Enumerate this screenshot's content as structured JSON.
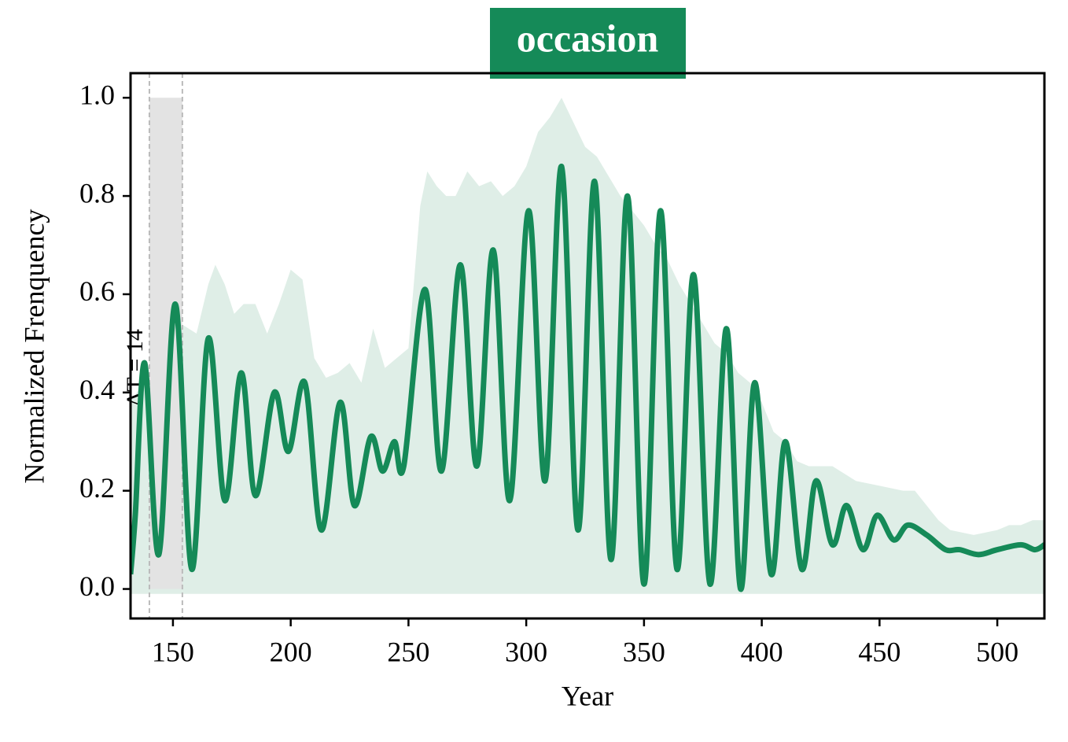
{
  "chart_data": {
    "type": "line",
    "title": "occasion",
    "x_label": "Year",
    "y_label": "Normalized Frenquency",
    "annotation": "ΔT = 14",
    "color": "#158a58",
    "xlim": [
      132,
      520
    ],
    "ylim": [
      -0.06,
      1.05
    ],
    "xticks": [
      150,
      200,
      250,
      300,
      350,
      400,
      450,
      500
    ],
    "yticks": [
      {
        "value": 0,
        "label": "0.0"
      },
      {
        "value": 0.2,
        "label": "0.2"
      },
      {
        "value": 0.4,
        "label": "0.4"
      },
      {
        "value": 0.6,
        "label": "0.6"
      },
      {
        "value": 0.8,
        "label": "0.8"
      },
      {
        "value": 1,
        "label": "1.0"
      }
    ],
    "span": {
      "start": 140,
      "end": 154,
      "ymin": 0,
      "ymax": 1,
      "color": "#e3e3e3"
    },
    "band": {
      "color": "#dfeee7",
      "lower": -0.01,
      "x": [
        132,
        140,
        150,
        160,
        165,
        168,
        172,
        176,
        180,
        185,
        190,
        195,
        200,
        205,
        210,
        215,
        220,
        225,
        230,
        235,
        240,
        245,
        250,
        255,
        258,
        262,
        266,
        270,
        275,
        280,
        285,
        290,
        295,
        300,
        305,
        310,
        315,
        320,
        325,
        330,
        335,
        340,
        345,
        350,
        355,
        360,
        365,
        370,
        375,
        380,
        385,
        390,
        395,
        400,
        405,
        410,
        415,
        420,
        430,
        440,
        450,
        460,
        465,
        470,
        475,
        480,
        490,
        500,
        505,
        510,
        515,
        520
      ],
      "upper": [
        0.38,
        0.44,
        0.55,
        0.52,
        0.62,
        0.66,
        0.62,
        0.56,
        0.58,
        0.58,
        0.52,
        0.58,
        0.65,
        0.63,
        0.47,
        0.43,
        0.44,
        0.46,
        0.42,
        0.53,
        0.45,
        0.47,
        0.49,
        0.78,
        0.85,
        0.82,
        0.8,
        0.8,
        0.85,
        0.82,
        0.83,
        0.8,
        0.82,
        0.86,
        0.93,
        0.96,
        1.0,
        0.95,
        0.9,
        0.88,
        0.84,
        0.8,
        0.77,
        0.74,
        0.7,
        0.67,
        0.62,
        0.58,
        0.54,
        0.5,
        0.48,
        0.44,
        0.42,
        0.38,
        0.32,
        0.3,
        0.26,
        0.25,
        0.25,
        0.22,
        0.21,
        0.2,
        0.2,
        0.17,
        0.14,
        0.12,
        0.11,
        0.12,
        0.13,
        0.13,
        0.14,
        0.14
      ]
    },
    "x": [
      132,
      134,
      138,
      144,
      151,
      158,
      165,
      172,
      179,
      185,
      193,
      199,
      206,
      213,
      221,
      227,
      234,
      239,
      244,
      248,
      257,
      264,
      272,
      279,
      286,
      293,
      301,
      308,
      315,
      322,
      329,
      336,
      343,
      350,
      357,
      364,
      371,
      378,
      385,
      391,
      397,
      404,
      410,
      417,
      423,
      430,
      436,
      443,
      449,
      456,
      462,
      470,
      478,
      484,
      492,
      500,
      510,
      516,
      520
    ],
    "values": [
      0.03,
      0.15,
      0.46,
      0.07,
      0.58,
      0.04,
      0.51,
      0.18,
      0.44,
      0.19,
      0.4,
      0.28,
      0.42,
      0.12,
      0.38,
      0.17,
      0.31,
      0.24,
      0.3,
      0.25,
      0.61,
      0.24,
      0.66,
      0.25,
      0.69,
      0.18,
      0.77,
      0.22,
      0.86,
      0.12,
      0.83,
      0.06,
      0.8,
      0.01,
      0.77,
      0.04,
      0.64,
      0.01,
      0.53,
      0.0,
      0.42,
      0.03,
      0.3,
      0.04,
      0.22,
      0.09,
      0.17,
      0.08,
      0.15,
      0.1,
      0.13,
      0.11,
      0.08,
      0.08,
      0.07,
      0.08,
      0.09,
      0.08,
      0.09
    ]
  }
}
